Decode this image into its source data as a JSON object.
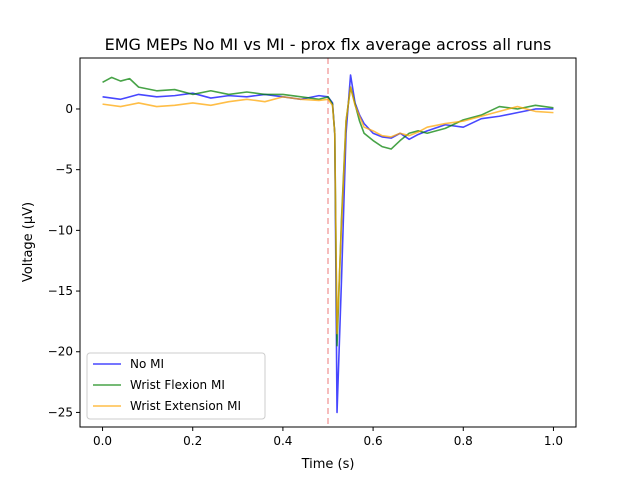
{
  "chart_data": {
    "type": "line",
    "title": "EMG MEPs No MI vs MI - prox flx average across all runs",
    "xlabel": "Time (s)",
    "ylabel": "Voltage (µV)",
    "xlim": [
      -0.05,
      1.05
    ],
    "ylim": [
      -26.2,
      4.2
    ],
    "xticks": [
      0.0,
      0.2,
      0.4,
      0.6,
      0.8,
      1.0
    ],
    "xtick_labels": [
      "0.0",
      "0.2",
      "0.4",
      "0.6",
      "0.8",
      "1.0"
    ],
    "yticks": [
      0,
      -5,
      -10,
      -15,
      -20,
      -25
    ],
    "ytick_labels": [
      "0",
      "−5",
      "−10",
      "−15",
      "−20",
      "−25"
    ],
    "grid": false,
    "legend_position": "lower-left",
    "vline": {
      "x": 0.5,
      "color": "#f4a6a6",
      "style": "dashed"
    },
    "series": [
      {
        "name": "No MI",
        "color": "#0000ff",
        "x": [
          0.0,
          0.04,
          0.08,
          0.12,
          0.16,
          0.2,
          0.24,
          0.28,
          0.32,
          0.36,
          0.4,
          0.44,
          0.48,
          0.5,
          0.51,
          0.515,
          0.52,
          0.53,
          0.54,
          0.55,
          0.56,
          0.57,
          0.58,
          0.6,
          0.62,
          0.64,
          0.66,
          0.68,
          0.7,
          0.72,
          0.76,
          0.8,
          0.84,
          0.88,
          0.92,
          0.96,
          1.0
        ],
        "y": [
          1.0,
          0.8,
          1.2,
          1.0,
          1.1,
          1.3,
          0.9,
          1.1,
          1.0,
          1.2,
          1.0,
          0.8,
          1.1,
          1.0,
          0.5,
          -2.0,
          -25.0,
          -14.0,
          -2.0,
          2.8,
          0.5,
          -0.5,
          -1.2,
          -2.0,
          -2.3,
          -2.4,
          -2.0,
          -2.5,
          -2.1,
          -1.8,
          -1.3,
          -1.5,
          -0.8,
          -0.6,
          -0.3,
          0.0,
          0.0
        ]
      },
      {
        "name": "Wrist Flexion MI",
        "color": "#008000",
        "x": [
          0.0,
          0.02,
          0.04,
          0.06,
          0.08,
          0.12,
          0.16,
          0.2,
          0.24,
          0.28,
          0.32,
          0.36,
          0.4,
          0.44,
          0.48,
          0.5,
          0.51,
          0.515,
          0.52,
          0.53,
          0.54,
          0.55,
          0.56,
          0.57,
          0.58,
          0.6,
          0.62,
          0.64,
          0.66,
          0.68,
          0.7,
          0.72,
          0.76,
          0.8,
          0.84,
          0.88,
          0.92,
          0.96,
          1.0
        ],
        "y": [
          2.2,
          2.6,
          2.3,
          2.5,
          1.8,
          1.5,
          1.6,
          1.2,
          1.5,
          1.2,
          1.4,
          1.2,
          1.2,
          1.0,
          0.8,
          1.0,
          0.4,
          -2.0,
          -19.5,
          -9.0,
          -1.0,
          1.8,
          0.4,
          -1.0,
          -2.0,
          -2.6,
          -3.1,
          -3.3,
          -2.6,
          -2.0,
          -1.8,
          -2.0,
          -1.6,
          -0.9,
          -0.5,
          0.2,
          0.0,
          0.3,
          0.1
        ]
      },
      {
        "name": "Wrist Extension MI",
        "color": "#ffa500",
        "x": [
          0.0,
          0.04,
          0.08,
          0.12,
          0.16,
          0.2,
          0.24,
          0.28,
          0.32,
          0.36,
          0.4,
          0.44,
          0.48,
          0.5,
          0.51,
          0.515,
          0.52,
          0.53,
          0.54,
          0.55,
          0.56,
          0.57,
          0.58,
          0.6,
          0.62,
          0.64,
          0.66,
          0.68,
          0.7,
          0.72,
          0.76,
          0.8,
          0.84,
          0.88,
          0.92,
          0.96,
          1.0
        ],
        "y": [
          0.4,
          0.2,
          0.5,
          0.2,
          0.3,
          0.5,
          0.3,
          0.6,
          0.8,
          0.6,
          1.0,
          0.8,
          0.7,
          0.8,
          0.3,
          -2.0,
          -18.5,
          -9.5,
          -1.0,
          1.8,
          0.3,
          -0.6,
          -1.5,
          -1.8,
          -2.2,
          -2.3,
          -2.0,
          -2.2,
          -1.9,
          -1.5,
          -1.2,
          -1.0,
          -0.6,
          -0.2,
          0.2,
          -0.2,
          -0.3
        ]
      }
    ]
  }
}
